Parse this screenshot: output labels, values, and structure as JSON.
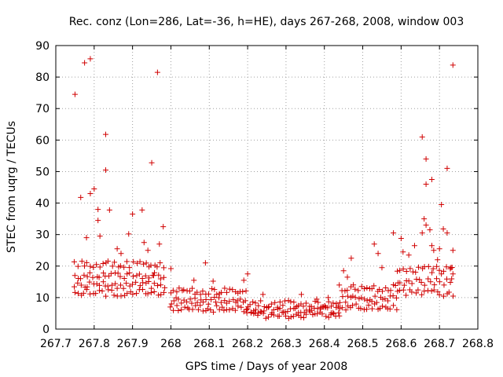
{
  "chart_data": {
    "type": "scatter",
    "title": "Rec. conz (Lon=286, Lat=-36, h=HE), days 267-268, 2008, window 003",
    "xlabel": "GPS time / Days of year 2008",
    "ylabel": "STEC from uqrg / TECUs",
    "xlim": [
      267.7,
      268.8
    ],
    "ylim": [
      0,
      90
    ],
    "xticks": [
      "267.7",
      "267.8",
      "267.9",
      "268",
      "268.1",
      "268.2",
      "268.3",
      "268.4",
      "268.5",
      "268.6",
      "268.7",
      "268.8"
    ],
    "xtick_values": [
      267.7,
      267.8,
      267.9,
      268.0,
      268.1,
      268.2,
      268.3,
      268.4,
      268.5,
      268.6,
      268.7,
      268.8
    ],
    "yticks": [
      "0",
      "10",
      "20",
      "30",
      "40",
      "50",
      "60",
      "70",
      "80",
      "90"
    ],
    "ytick_values": [
      0,
      10,
      20,
      30,
      40,
      50,
      60,
      70,
      80,
      90
    ],
    "grid": true,
    "marker": "+",
    "color": "#d00000",
    "outliers": [
      [
        267.75,
        74.5
      ],
      [
        267.765,
        41.8
      ],
      [
        267.775,
        84.5
      ],
      [
        267.79,
        85.8
      ],
      [
        267.79,
        43.0
      ],
      [
        267.8,
        44.5
      ],
      [
        267.81,
        38.0
      ],
      [
        267.83,
        61.8
      ],
      [
        267.83,
        50.5
      ],
      [
        267.84,
        37.8
      ],
      [
        267.81,
        34.5
      ],
      [
        267.78,
        29.0
      ],
      [
        267.815,
        29.5
      ],
      [
        267.86,
        25.5
      ],
      [
        267.87,
        24.0
      ],
      [
        267.89,
        30.2
      ],
      [
        267.9,
        36.5
      ],
      [
        267.925,
        37.8
      ],
      [
        267.93,
        27.5
      ],
      [
        267.95,
        52.8
      ],
      [
        267.965,
        81.5
      ],
      [
        267.97,
        27.0
      ],
      [
        267.98,
        32.5
      ],
      [
        267.94,
        25.0
      ],
      [
        267.955,
        17.0
      ],
      [
        268.0,
        19.2
      ],
      [
        268.09,
        21.0
      ],
      [
        268.06,
        15.5
      ],
      [
        268.11,
        15.2
      ],
      [
        268.19,
        15.5
      ],
      [
        268.2,
        17.5
      ],
      [
        268.24,
        11.0
      ],
      [
        268.34,
        11.0
      ],
      [
        268.38,
        9.5
      ],
      [
        268.41,
        10.0
      ],
      [
        268.45,
        18.5
      ],
      [
        268.47,
        22.5
      ],
      [
        268.46,
        16.5
      ],
      [
        268.53,
        27.0
      ],
      [
        268.54,
        24.0
      ],
      [
        268.55,
        19.5
      ],
      [
        268.58,
        30.5
      ],
      [
        268.6,
        28.8
      ],
      [
        268.605,
        24.5
      ],
      [
        268.62,
        23.5
      ],
      [
        268.635,
        26.5
      ],
      [
        268.655,
        61.0
      ],
      [
        268.665,
        54.0
      ],
      [
        268.665,
        46.0
      ],
      [
        268.68,
        47.5
      ],
      [
        268.66,
        35.0
      ],
      [
        268.665,
        33.0
      ],
      [
        268.655,
        30.5
      ],
      [
        268.675,
        31.5
      ],
      [
        268.68,
        26.5
      ],
      [
        268.685,
        25.0
      ],
      [
        268.705,
        39.5
      ],
      [
        268.72,
        51.0
      ],
      [
        268.735,
        83.8
      ],
      [
        268.735,
        25.0
      ],
      [
        268.71,
        31.8
      ],
      [
        268.72,
        30.5
      ],
      [
        268.7,
        25.5
      ],
      [
        268.695,
        22.0
      ],
      [
        268.705,
        17.5
      ],
      [
        268.73,
        19.5
      ],
      [
        268.735,
        17.5
      ]
    ],
    "bands": [
      {
        "x_start": 267.75,
        "x_end": 267.985,
        "step": 0.008,
        "levels": [
          11.5,
          14.0,
          17.0,
          20.5
        ]
      },
      {
        "x_start": 268.0,
        "x_end": 268.2,
        "step": 0.007,
        "levels": [
          6.5,
          9.0,
          12.0
        ]
      },
      {
        "x_start": 268.2,
        "x_end": 268.44,
        "step": 0.007,
        "levels": [
          4.5,
          6.0,
          8.0
        ]
      },
      {
        "x_start": 268.44,
        "x_end": 268.59,
        "step": 0.007,
        "levels": [
          7.0,
          9.5,
          13.0
        ]
      },
      {
        "x_start": 268.59,
        "x_end": 268.735,
        "step": 0.008,
        "levels": [
          11.5,
          15.0,
          19.0
        ]
      }
    ]
  }
}
